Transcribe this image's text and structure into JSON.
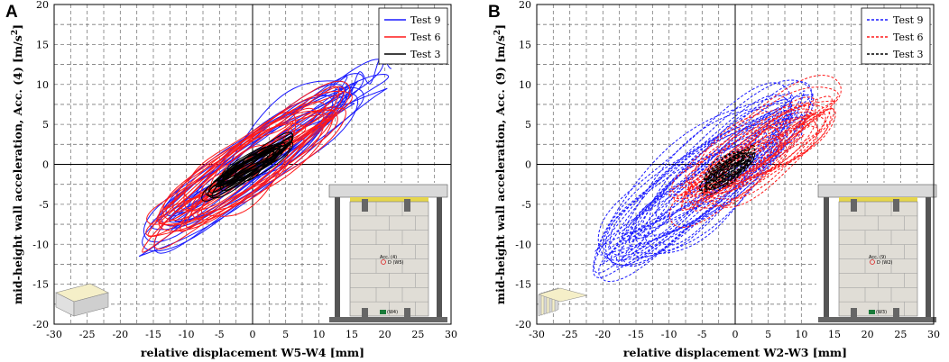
{
  "chart_data": [
    {
      "panel": "A",
      "type": "line",
      "xlabel": "relative displacement W5-W4 [mm]",
      "ylabel": "mid-height wall acceleration, Acc. (4) [m/s",
      "ylabel_sup": "2",
      "ylabel_end": "]",
      "xlim": [
        -30,
        30
      ],
      "ylim": [
        -20,
        20
      ],
      "xticks": [
        -30,
        -25,
        -20,
        -15,
        -10,
        -5,
        0,
        5,
        10,
        15,
        20,
        25,
        30
      ],
      "yticks": [
        -20,
        -15,
        -10,
        -5,
        0,
        5,
        10,
        15,
        20
      ],
      "grid": true,
      "line_style": "solid",
      "legend_position": "top-right",
      "series": [
        {
          "name": "Test 9",
          "color": "#1a1aff",
          "slope": 0.58,
          "band": 2.6,
          "x_range": [
            -17,
            21
          ],
          "cycles": 16
        },
        {
          "name": "Test 6",
          "color": "#ff1a1a",
          "slope": 0.55,
          "band": 2.2,
          "x_range": [
            -15,
            15
          ],
          "cycles": 22
        },
        {
          "name": "Test 3",
          "color": "#000000",
          "slope": 0.5,
          "band": 0.9,
          "x_range": [
            -7,
            6
          ],
          "cycles": 22
        }
      ],
      "inset": {
        "specimen": "single-leaf",
        "acc_label": "Acc. (4)",
        "d_label": "D",
        "d_sub": "(W5)",
        "base_label": "(W4)"
      }
    },
    {
      "panel": "B",
      "type": "line",
      "xlabel": "relative displacement W2-W3 [mm]",
      "ylabel": "mid-height wall acceleration, Acc. (9) [m/s",
      "ylabel_sup": "2",
      "ylabel_end": "]",
      "xlim": [
        -30,
        30
      ],
      "ylim": [
        -20,
        20
      ],
      "xticks": [
        -30,
        -25,
        -20,
        -15,
        -10,
        -5,
        0,
        5,
        10,
        15,
        20,
        25,
        30
      ],
      "yticks": [
        -20,
        -15,
        -10,
        -5,
        0,
        5,
        10,
        15,
        20
      ],
      "grid": true,
      "line_style": "dashed",
      "legend_position": "top-right",
      "series": [
        {
          "name": "Test 9",
          "color": "#1a1aff",
          "slope": 0.62,
          "band": 3.6,
          "x_range": [
            -20,
            12
          ],
          "cycles": 26
        },
        {
          "name": "Test 6",
          "color": "#ff1a1a",
          "slope": 0.5,
          "band": 2.4,
          "x_range": [
            -9,
            15
          ],
          "cycles": 24
        },
        {
          "name": "Test 3",
          "color": "#000000",
          "slope": 0.5,
          "band": 1.0,
          "x_range": [
            -5,
            3
          ],
          "cycles": 22
        }
      ],
      "inset": {
        "specimen": "multi-leaf",
        "acc_label": "Acc. (9)",
        "d_label": "D",
        "d_sub": "(W2)",
        "base_label": "(W3)"
      }
    }
  ]
}
